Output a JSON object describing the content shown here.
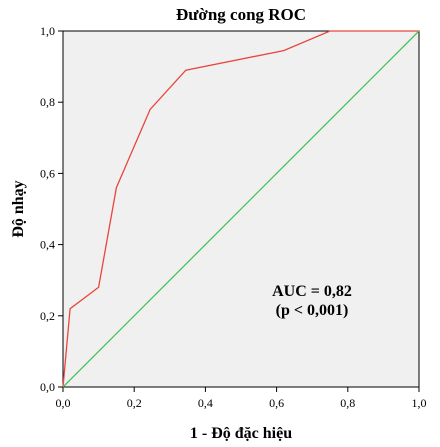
{
  "chart_data": {
    "type": "line",
    "title": "Đường cong ROC",
    "xlabel": "1 - Độ đặc hiệu",
    "ylabel": "Độ nhạy",
    "xlim": [
      0,
      1
    ],
    "ylim": [
      0,
      1
    ],
    "x_ticks": [
      "0,0",
      "0,2",
      "0,4",
      "0,6",
      "0,8",
      "1,0"
    ],
    "y_ticks": [
      "0,0",
      "0,2",
      "0,4",
      "0,6",
      "0,8",
      "1,0"
    ],
    "grid": false,
    "legend": "none",
    "series": [
      {
        "color": "#e8463c",
        "x": [
          0,
          0,
          0.02,
          0.1,
          0.15,
          0.245,
          0.345,
          0.62,
          0.75,
          1.0
        ],
        "y": [
          0,
          0,
          0.22,
          0.28,
          0.56,
          0.78,
          0.89,
          0.945,
          1.0,
          1.0
        ]
      },
      {
        "color": "#4cbf58",
        "x": [
          0,
          1
        ],
        "y": [
          0,
          1
        ]
      }
    ],
    "annotations": [
      "AUC = 0,82",
      "(p < 0,001)"
    ],
    "plot_background": "#f0f0f0"
  }
}
